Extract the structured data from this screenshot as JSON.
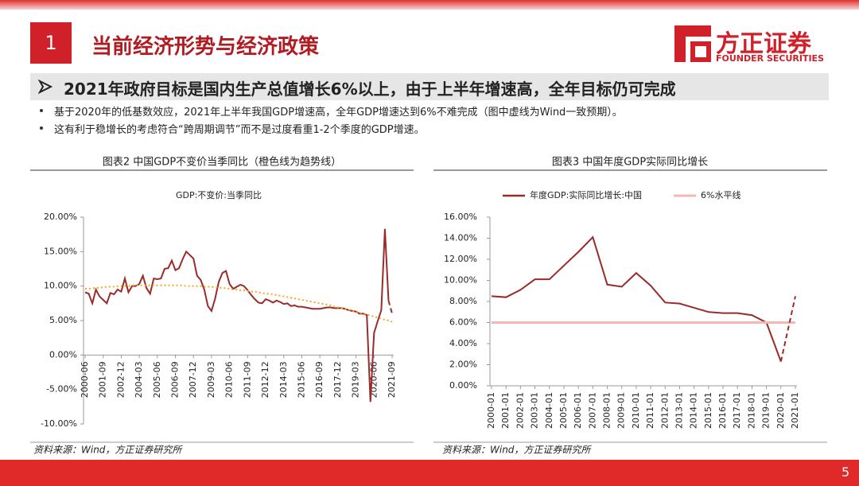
{
  "header": {
    "number": "1",
    "title": "当前经济形势与经济政策"
  },
  "logo": {
    "name": "方正证券",
    "subtitle": "FOUNDER SECURITIES"
  },
  "headline": "2021年政府目标是国内生产总值增长6%以上，由于上半年增速高，全年目标仍可完成",
  "bullets": [
    "基于2020年的低基数效应，2021年上半年我国GDP增速高，全年GDP增速达到6%不难完成（图中虚线为Wind一致预期）。",
    "这有利于稳增长的考虑符合“跨周期调节”而不是过度看重1-2个季度的GDP增速。"
  ],
  "sources": [
    "资料来源：Wind，方正证券研究所",
    "资料来源：Wind，方正证券研究所"
  ],
  "page_number": "5",
  "chart_data": [
    {
      "type": "line",
      "title": "图表2 中国GDP不变价当季同比（橙色线为趋势线）",
      "legend_swatch": false,
      "categories": [
        "2000-06",
        null,
        null,
        null,
        null,
        "2001-09",
        null,
        null,
        null,
        null,
        "2002-12",
        null,
        null,
        null,
        null,
        "2004-03",
        null,
        null,
        null,
        null,
        "2005-06",
        null,
        null,
        null,
        null,
        "2006-09",
        null,
        null,
        null,
        null,
        "2007-12",
        null,
        null,
        null,
        null,
        "2009-03",
        null,
        null,
        null,
        null,
        "2010-06",
        null,
        null,
        null,
        null,
        "2011-09",
        null,
        null,
        null,
        null,
        "2012-12",
        null,
        null,
        null,
        null,
        "2014-03",
        null,
        null,
        null,
        null,
        "2015-06",
        null,
        null,
        null,
        null,
        "2016-09",
        null,
        null,
        null,
        null,
        "2017-12",
        null,
        null,
        null,
        null,
        "2019-03",
        null,
        null,
        null,
        null,
        "2020-06",
        null,
        null,
        null,
        null,
        "2021-09"
      ],
      "series": [
        {
          "name": "GDP:不变价:当季同比",
          "color": "#9b2a2a",
          "dash": "solid",
          "values": [
            9.1,
            8.9,
            7.5,
            9.5,
            8.5,
            8.0,
            7.5,
            9.0,
            8.8,
            9.5,
            9.2,
            11.1,
            9.1,
            10.0,
            10.0,
            10.3,
            11.5,
            9.7,
            8.9,
            11.1,
            11.0,
            11.1,
            12.5,
            12.6,
            13.7,
            12.3,
            12.6,
            13.9,
            15.0,
            14.5,
            14.0,
            11.5,
            10.9,
            9.5,
            7.1,
            6.4,
            8.2,
            10.6,
            11.9,
            12.2,
            10.3,
            9.6,
            9.9,
            10.2,
            10.0,
            9.4,
            8.7,
            8.1,
            7.6,
            7.5,
            8.1,
            7.9,
            7.6,
            7.9,
            7.7,
            7.4,
            7.5,
            7.1,
            7.2,
            7.0,
            7.0,
            6.9,
            6.8,
            6.7,
            6.7,
            6.7,
            6.8,
            6.9,
            6.9,
            6.8,
            6.8,
            6.8,
            6.7,
            6.5,
            6.4,
            6.3,
            6.0,
            6.0,
            5.8,
            -6.8,
            3.2,
            4.9,
            6.5,
            18.3,
            7.9,
            null
          ]
        },
        {
          "color": "#9b2a2a",
          "dash": "dashed",
          "values": [
            null,
            null,
            null,
            null,
            null,
            null,
            null,
            null,
            null,
            null,
            null,
            null,
            null,
            null,
            null,
            null,
            null,
            null,
            null,
            null,
            null,
            null,
            null,
            null,
            null,
            null,
            null,
            null,
            null,
            null,
            null,
            null,
            null,
            null,
            null,
            null,
            null,
            null,
            null,
            null,
            null,
            null,
            null,
            null,
            null,
            null,
            null,
            null,
            null,
            null,
            null,
            null,
            null,
            null,
            null,
            null,
            null,
            null,
            null,
            null,
            null,
            null,
            null,
            null,
            null,
            null,
            null,
            null,
            null,
            null,
            null,
            null,
            null,
            null,
            null,
            null,
            null,
            null,
            null,
            null,
            null,
            null,
            null,
            null,
            7.9,
            6.0
          ]
        },
        {
          "color": "#f5a623",
          "dash": "dotted",
          "values": [
            9.6,
            9.6,
            9.7,
            9.7,
            9.8,
            9.8,
            9.9,
            9.9,
            9.9,
            10.0,
            10.0,
            10.0,
            10.0,
            10.1,
            10.1,
            10.1,
            10.1,
            10.1,
            10.1,
            10.1,
            10.1,
            10.1,
            10.1,
            10.1,
            10.1,
            10.1,
            10.1,
            10.1,
            10.0,
            10.0,
            10.0,
            10.0,
            10.0,
            9.9,
            9.9,
            9.9,
            9.8,
            9.8,
            9.7,
            9.7,
            9.6,
            9.5,
            9.5,
            9.4,
            9.4,
            9.3,
            9.2,
            9.2,
            9.1,
            9.0,
            8.9,
            8.9,
            8.8,
            8.7,
            8.6,
            8.5,
            8.4,
            8.3,
            8.2,
            8.1,
            8.0,
            7.9,
            7.8,
            7.7,
            7.6,
            7.5,
            7.4,
            7.3,
            7.2,
            7.0,
            6.9,
            6.8,
            6.7,
            6.5,
            6.4,
            6.3,
            6.1,
            6.0,
            5.9,
            5.7,
            5.6,
            5.4,
            5.3,
            5.1,
            5.0,
            4.8
          ]
        }
      ],
      "ylim": [
        -10,
        20
      ],
      "yticks": [
        {
          "value": -10,
          "label": "-10.00%"
        },
        {
          "value": -5,
          "label": "-5.00%"
        },
        {
          "value": 0,
          "label": "0.00%"
        },
        {
          "value": 5,
          "label": "5.00%"
        },
        {
          "value": 10,
          "label": "10.00%"
        },
        {
          "value": 15,
          "label": "15.00%"
        },
        {
          "value": 20,
          "label": "20.00%"
        }
      ],
      "grid": false
    },
    {
      "type": "line",
      "title": "图表3 中国年度GDP实际同比增长",
      "legend_swatch": true,
      "categories": [
        "2000-01",
        "2001-01",
        "2002-01",
        "2003-01",
        "2004-01",
        "2005-01",
        "2006-01",
        "2007-01",
        "2008-01",
        "2009-01",
        "2010-01",
        "2011-01",
        "2012-01",
        "2013-01",
        "2014-01",
        "2015-01",
        "2016-01",
        "2017-01",
        "2018-01",
        "2019-01",
        "2020-01",
        "2021-01"
      ],
      "series": [
        {
          "name": "年度GDP:实际同比增长:中国",
          "color": "#9b2a2a",
          "dash": "solid",
          "values": [
            8.5,
            8.4,
            9.1,
            10.1,
            10.1,
            11.4,
            12.7,
            14.1,
            9.6,
            9.4,
            10.7,
            9.5,
            7.9,
            7.8,
            7.4,
            7.0,
            6.9,
            6.9,
            6.7,
            6.0,
            2.3,
            null
          ]
        },
        {
          "name": "6%水平线",
          "color": "#f4b6b6",
          "dash": "solid",
          "width": 3,
          "values": [
            6,
            6,
            6,
            6,
            6,
            6,
            6,
            6,
            6,
            6,
            6,
            6,
            6,
            6,
            6,
            6,
            6,
            6,
            6,
            6,
            6,
            6
          ]
        },
        {
          "color": "#9b2a2a",
          "dash": "dashed",
          "values": [
            null,
            null,
            null,
            null,
            null,
            null,
            null,
            null,
            null,
            null,
            null,
            null,
            null,
            null,
            null,
            null,
            null,
            null,
            null,
            null,
            2.3,
            8.5
          ]
        }
      ],
      "ylim": [
        0,
        16
      ],
      "yticks": [
        {
          "value": 0,
          "label": "0.00%"
        },
        {
          "value": 2,
          "label": "2.00%"
        },
        {
          "value": 4,
          "label": "4.00%"
        },
        {
          "value": 6,
          "label": "6.00%"
        },
        {
          "value": 8,
          "label": "8.00%"
        },
        {
          "value": 10,
          "label": "10.00%"
        },
        {
          "value": 12,
          "label": "12.00%"
        },
        {
          "value": 14,
          "label": "14.00%"
        },
        {
          "value": 16,
          "label": "16.00%"
        }
      ],
      "grid": false
    }
  ]
}
